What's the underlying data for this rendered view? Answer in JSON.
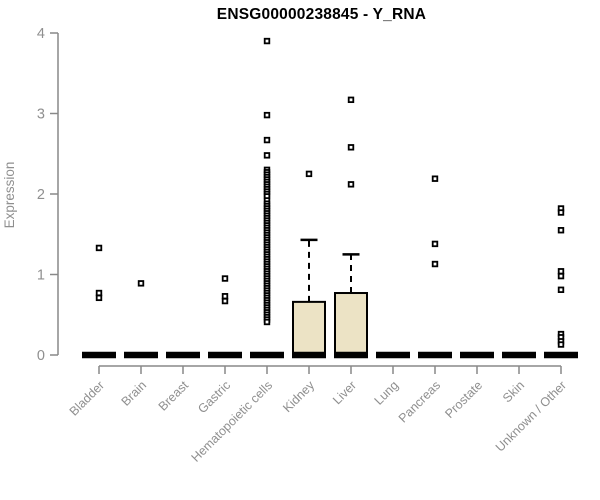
{
  "colors": {
    "background": "#ffffff",
    "box_fill": "#ece3c5",
    "box_border": "#000000",
    "median": "#000000",
    "whisker": "#000000",
    "outlier": "#000000",
    "axis": "#898989",
    "tick_label": "#8f8f8f",
    "title": "#000000"
  },
  "chart_data": {
    "type": "boxplot",
    "title": "ENSG00000238845 - Y_RNA",
    "ylabel": "Expression",
    "xlabel": "",
    "ylim": [
      0,
      4
    ],
    "yticks": [
      "0",
      "1",
      "2",
      "3",
      "4"
    ],
    "grid": "off",
    "legend": "none",
    "categories": [
      "Bladder",
      "Brain",
      "Breast",
      "Gastric",
      "Hematopoietic cells",
      "Kidney",
      "Liver",
      "Lung",
      "Pancreas",
      "Prostate",
      "Skin",
      "Unknown / Other"
    ],
    "boxes": [
      {
        "category": "Bladder",
        "q1": 0,
        "median": 0,
        "q3": 0,
        "whisker_low": 0,
        "whisker_high": 0,
        "outliers": [
          1.33,
          0.77,
          0.71
        ]
      },
      {
        "category": "Brain",
        "q1": 0,
        "median": 0,
        "q3": 0,
        "whisker_low": 0,
        "whisker_high": 0,
        "outliers": [
          0.89
        ]
      },
      {
        "category": "Breast",
        "q1": 0,
        "median": 0,
        "q3": 0,
        "whisker_low": 0,
        "whisker_high": 0,
        "outliers": []
      },
      {
        "category": "Gastric",
        "q1": 0,
        "median": 0,
        "q3": 0,
        "whisker_low": 0,
        "whisker_high": 0,
        "outliers": [
          0.95,
          0.73,
          0.67
        ]
      },
      {
        "category": "Hematopoietic cells",
        "q1": 0,
        "median": 0,
        "q3": 0,
        "whisker_low": 0,
        "whisker_high": 0,
        "outliers": [
          3.9,
          2.98,
          2.67,
          2.48,
          2.3,
          2.27,
          2.24,
          2.21,
          2.18,
          2.15,
          2.12,
          2.09,
          2.06,
          2.03,
          2.0,
          1.97,
          1.92,
          1.88,
          1.85,
          1.82,
          1.79,
          1.76,
          1.73,
          1.7,
          1.67,
          1.64,
          1.61,
          1.58,
          1.55,
          1.52,
          1.49,
          1.46,
          1.43,
          1.4,
          1.37,
          1.34,
          1.31,
          1.28,
          1.25,
          1.22,
          1.19,
          1.16,
          1.13,
          1.1,
          1.07,
          1.04,
          1.01,
          0.98,
          0.95,
          0.92,
          0.89,
          0.86,
          0.83,
          0.8,
          0.77,
          0.74,
          0.71,
          0.68,
          0.65,
          0.62,
          0.59,
          0.56,
          0.53,
          0.5,
          0.47,
          0.44,
          0.41
        ]
      },
      {
        "category": "Kidney",
        "q1": 0,
        "median": 0,
        "q3": 0.66,
        "whisker_low": 0,
        "whisker_high": 1.43,
        "outliers": [
          2.25
        ]
      },
      {
        "category": "Liver",
        "q1": 0,
        "median": 0,
        "q3": 0.77,
        "whisker_low": 0,
        "whisker_high": 1.25,
        "outliers": [
          3.17,
          2.58,
          2.12
        ]
      },
      {
        "category": "Lung",
        "q1": 0,
        "median": 0,
        "q3": 0,
        "whisker_low": 0,
        "whisker_high": 0,
        "outliers": []
      },
      {
        "category": "Pancreas",
        "q1": 0,
        "median": 0,
        "q3": 0,
        "whisker_low": 0,
        "whisker_high": 0,
        "outliers": [
          2.19,
          1.38,
          1.13
        ]
      },
      {
        "category": "Prostate",
        "q1": 0,
        "median": 0,
        "q3": 0,
        "whisker_low": 0,
        "whisker_high": 0,
        "outliers": []
      },
      {
        "category": "Skin",
        "q1": 0,
        "median": 0,
        "q3": 0,
        "whisker_low": 0,
        "whisker_high": 0,
        "outliers": []
      },
      {
        "category": "Unknown / Other",
        "q1": 0,
        "median": 0,
        "q3": 0,
        "whisker_low": 0,
        "whisker_high": 0,
        "outliers": [
          1.82,
          1.77,
          1.55,
          1.04,
          0.98,
          0.81,
          0.26,
          0.22,
          0.17,
          0.13
        ]
      }
    ]
  }
}
